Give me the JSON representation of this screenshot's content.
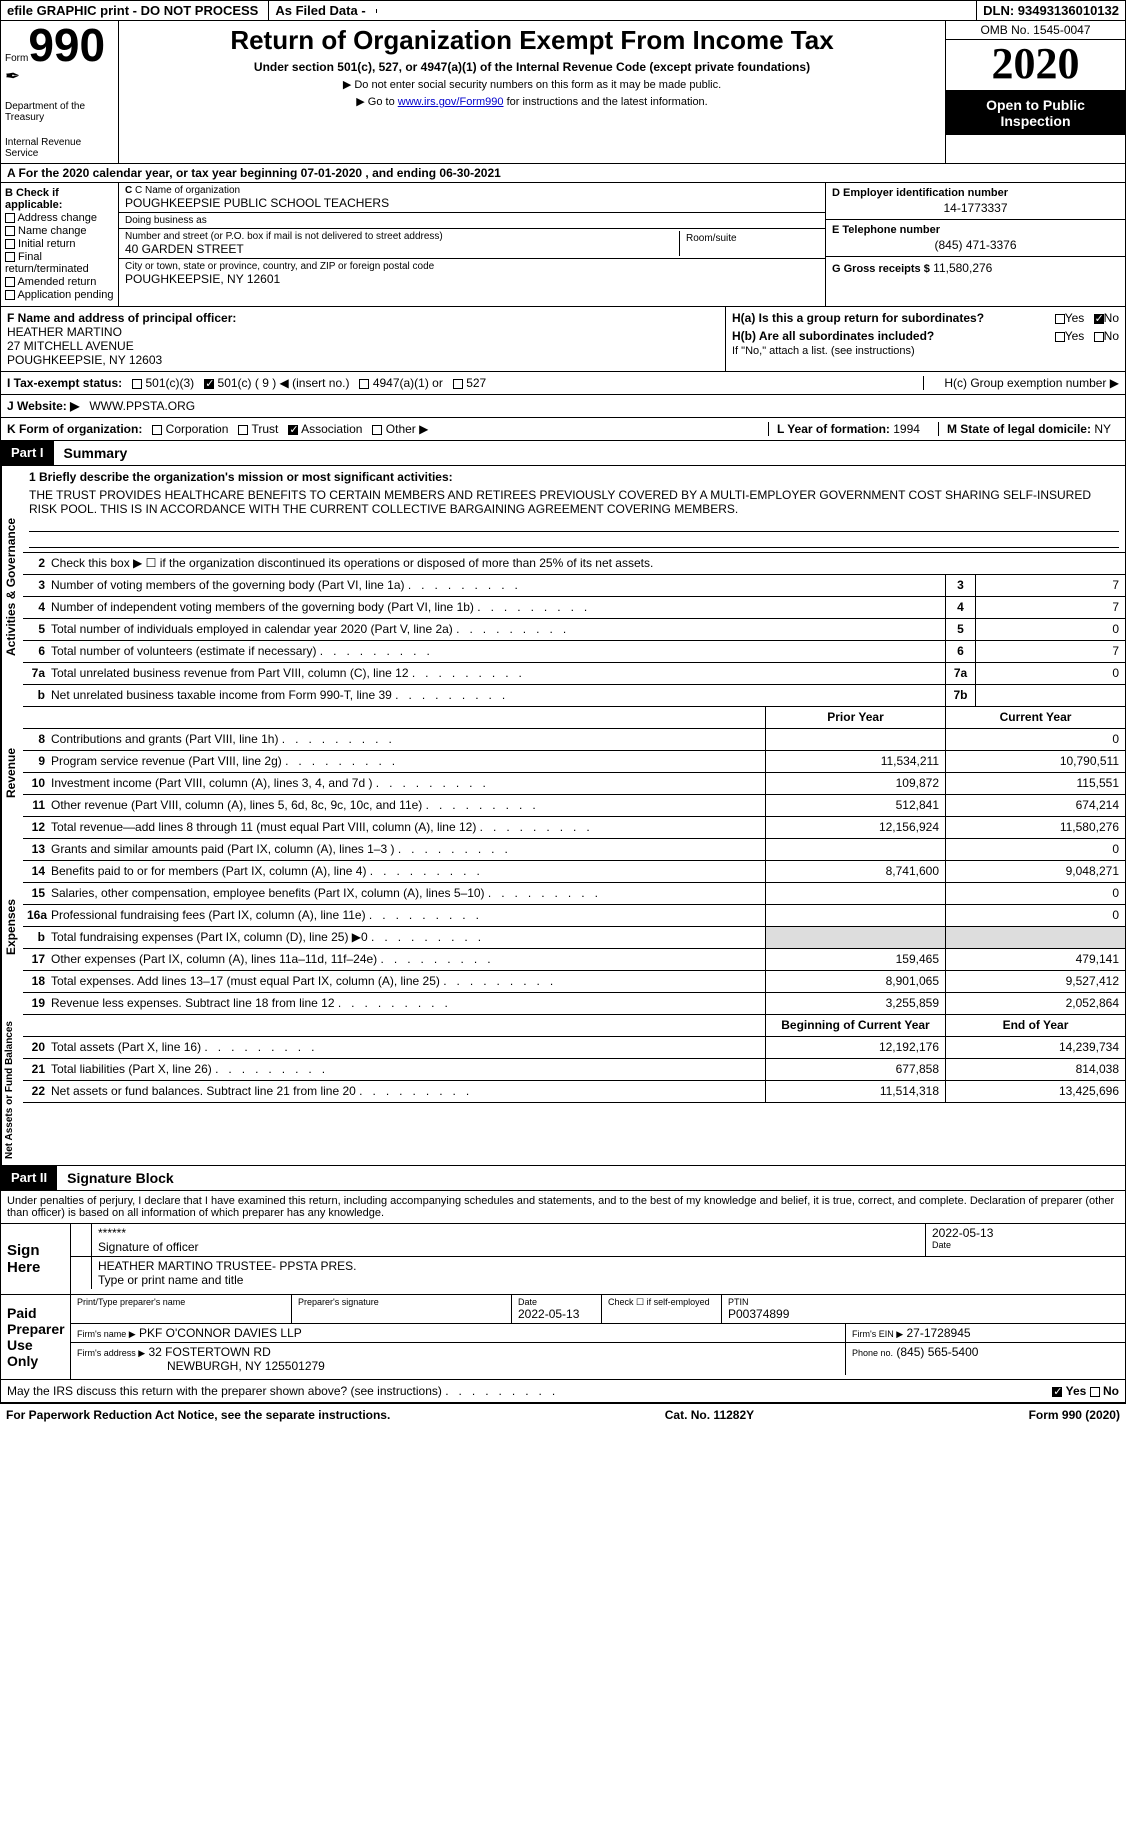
{
  "header_bar": {
    "efile": "efile GRAPHIC print - DO NOT PROCESS",
    "asfileddata": "As Filed Data -",
    "dln": "DLN: 93493136010132"
  },
  "top": {
    "form_label": "Form",
    "form_num": "990",
    "dept1": "Department of the Treasury",
    "dept2": "Internal Revenue Service",
    "title": "Return of Organization Exempt From Income Tax",
    "sub": "Under section 501(c), 527, or 4947(a)(1) of the Internal Revenue Code (except private foundations)",
    "note": "▶ Do not enter social security numbers on this form as it may be made public.",
    "goto_pre": "▶ Go to ",
    "goto_link": "www.irs.gov/Form990",
    "goto_post": " for instructions and the latest information.",
    "omb": "OMB No. 1545-0047",
    "year": "2020",
    "open_pub": "Open to Public Inspection"
  },
  "rowA": {
    "pre": "A  For the 2020 calendar year, or tax year beginning ",
    "begin": "07-01-2020",
    "mid": " , and ending ",
    "end": "06-30-2021"
  },
  "colB": {
    "hdr": "B Check if applicable:",
    "items": [
      "Address change",
      "Name change",
      "Initial return",
      "Final return/terminated",
      "Amended return",
      "Application pending"
    ]
  },
  "colC": {
    "name_lbl": "C Name of organization",
    "name": "POUGHKEEPSIE PUBLIC SCHOOL TEACHERS",
    "dba_lbl": "Doing business as",
    "dba": "",
    "addr_lbl": "Number and street (or P.O. box if mail is not delivered to street address)",
    "addr": "40 GARDEN STREET",
    "room_lbl": "Room/suite",
    "city_lbl": "City or town, state or province, country, and ZIP or foreign postal code",
    "city": "POUGHKEEPSIE, NY  12601"
  },
  "colD": {
    "ein_lbl": "D Employer identification number",
    "ein": "14-1773337",
    "tel_lbl": "E Telephone number",
    "tel": "(845) 471-3376",
    "gross_lbl": "G Gross receipts $",
    "gross": "11,580,276"
  },
  "blockF": {
    "lbl": "F  Name and address of principal officer:",
    "name": "HEATHER MARTINO",
    "addr1": "27 MITCHELL AVENUE",
    "addr2": "POUGHKEEPSIE, NY  12603"
  },
  "blockH": {
    "ha": "H(a)  Is this a group return for subordinates?",
    "hb": "H(b)  Are all subordinates included?",
    "hb_note": "If \"No,\" attach a list. (see instructions)",
    "hc": "H(c)  Group exemption number ▶"
  },
  "rowI": {
    "lbl": "I  Tax-exempt status:",
    "opts": [
      "501(c)(3)",
      "501(c) ( 9 ) ◀ (insert no.)",
      "4947(a)(1) or",
      "527"
    ]
  },
  "rowJ": {
    "lbl": "J  Website: ▶",
    "val": "WWW.PPSTA.ORG"
  },
  "rowK": {
    "lbl": "K Form of organization:",
    "opts": [
      "Corporation",
      "Trust",
      "Association",
      "Other ▶"
    ],
    "l_lbl": "L Year of formation:",
    "l_val": "1994",
    "m_lbl": "M State of legal domicile:",
    "m_val": "NY"
  },
  "partI": {
    "tag": "Part I",
    "title": "Summary"
  },
  "summary": {
    "side1": "Activities & Governance",
    "side2": "Revenue",
    "side3": "Expenses",
    "side4": "Net Assets or Fund Balances",
    "mission_lbl": "1 Briefly describe the organization's mission or most significant activities:",
    "mission": "THE TRUST PROVIDES HEALTHCARE BENEFITS TO CERTAIN MEMBERS AND RETIREES PREVIOUSLY COVERED BY A MULTI-EMPLOYER GOVERNMENT COST SHARING SELF-INSURED RISK POOL. THIS IS IN ACCORDANCE WITH THE CURRENT COLLECTIVE BARGAINING AGREEMENT COVERING MEMBERS.",
    "line2": "Check this box ▶ ☐ if the organization discontinued its operations or disposed of more than 25% of its net assets.",
    "rows_ag": [
      {
        "n": "3",
        "t": "Number of voting members of the governing body (Part VI, line 1a)",
        "box": "3",
        "v": "7"
      },
      {
        "n": "4",
        "t": "Number of independent voting members of the governing body (Part VI, line 1b)",
        "box": "4",
        "v": "7"
      },
      {
        "n": "5",
        "t": "Total number of individuals employed in calendar year 2020 (Part V, line 2a)",
        "box": "5",
        "v": "0"
      },
      {
        "n": "6",
        "t": "Total number of volunteers (estimate if necessary)",
        "box": "6",
        "v": "7"
      },
      {
        "n": "7a",
        "t": "Total unrelated business revenue from Part VIII, column (C), line 12",
        "box": "7a",
        "v": "0"
      },
      {
        "n": "b",
        "t": "Net unrelated business taxable income from Form 990-T, line 39",
        "box": "7b",
        "v": ""
      }
    ],
    "col_hdr_prior": "Prior Year",
    "col_hdr_curr": "Current Year",
    "rows_rev": [
      {
        "n": "8",
        "t": "Contributions and grants (Part VIII, line 1h)",
        "p": "",
        "c": "0"
      },
      {
        "n": "9",
        "t": "Program service revenue (Part VIII, line 2g)",
        "p": "11,534,211",
        "c": "10,790,511"
      },
      {
        "n": "10",
        "t": "Investment income (Part VIII, column (A), lines 3, 4, and 7d )",
        "p": "109,872",
        "c": "115,551"
      },
      {
        "n": "11",
        "t": "Other revenue (Part VIII, column (A), lines 5, 6d, 8c, 9c, 10c, and 11e)",
        "p": "512,841",
        "c": "674,214"
      },
      {
        "n": "12",
        "t": "Total revenue—add lines 8 through 11 (must equal Part VIII, column (A), line 12)",
        "p": "12,156,924",
        "c": "11,580,276"
      }
    ],
    "rows_exp": [
      {
        "n": "13",
        "t": "Grants and similar amounts paid (Part IX, column (A), lines 1–3 )",
        "p": "",
        "c": "0"
      },
      {
        "n": "14",
        "t": "Benefits paid to or for members (Part IX, column (A), line 4)",
        "p": "8,741,600",
        "c": "9,048,271"
      },
      {
        "n": "15",
        "t": "Salaries, other compensation, employee benefits (Part IX, column (A), lines 5–10)",
        "p": "",
        "c": "0"
      },
      {
        "n": "16a",
        "t": "Professional fundraising fees (Part IX, column (A), line 11e)",
        "p": "",
        "c": "0"
      },
      {
        "n": "b",
        "t": "Total fundraising expenses (Part IX, column (D), line 25) ▶0",
        "p": "__SHADE__",
        "c": "__SHADE__"
      },
      {
        "n": "17",
        "t": "Other expenses (Part IX, column (A), lines 11a–11d, 11f–24e)",
        "p": "159,465",
        "c": "479,141"
      },
      {
        "n": "18",
        "t": "Total expenses. Add lines 13–17 (must equal Part IX, column (A), line 25)",
        "p": "8,901,065",
        "c": "9,527,412"
      },
      {
        "n": "19",
        "t": "Revenue less expenses. Subtract line 18 from line 12",
        "p": "3,255,859",
        "c": "2,052,864"
      }
    ],
    "col_hdr_boy": "Beginning of Current Year",
    "col_hdr_eoy": "End of Year",
    "rows_na": [
      {
        "n": "20",
        "t": "Total assets (Part X, line 16)",
        "p": "12,192,176",
        "c": "14,239,734"
      },
      {
        "n": "21",
        "t": "Total liabilities (Part X, line 26)",
        "p": "677,858",
        "c": "814,038"
      },
      {
        "n": "22",
        "t": "Net assets or fund balances. Subtract line 21 from line 20",
        "p": "11,514,318",
        "c": "13,425,696"
      }
    ]
  },
  "partII": {
    "tag": "Part II",
    "title": "Signature Block"
  },
  "sig": {
    "decl": "Under penalties of perjury, I declare that I have examined this return, including accompanying schedules and statements, and to the best of my knowledge and belief, it is true, correct, and complete. Declaration of preparer (other than officer) is based on all information of which preparer has any knowledge.",
    "sign_here": "Sign Here",
    "stars": "******",
    "sig_off": "Signature of officer",
    "date": "2022-05-13",
    "name_title": "HEATHER MARTINO TRUSTEE- PPSTA PRES.",
    "name_title_lbl": "Type or print name and title",
    "paid": "Paid Preparer Use Only",
    "prep_name_lbl": "Print/Type preparer's name",
    "prep_sig_lbl": "Preparer's signature",
    "prep_date_lbl": "Date",
    "prep_date": "2022-05-13",
    "check_self": "Check ☐ if self-employed",
    "ptin_lbl": "PTIN",
    "ptin": "P00374899",
    "firm_name_lbl": "Firm's name   ▶",
    "firm_name": "PKF O'CONNOR DAVIES LLP",
    "firm_ein_lbl": "Firm's EIN ▶",
    "firm_ein": "27-1728945",
    "firm_addr_lbl": "Firm's address ▶",
    "firm_addr": "32 FOSTERTOWN RD",
    "firm_city": "NEWBURGH, NY  125501279",
    "phone_lbl": "Phone no.",
    "phone": "(845) 565-5400",
    "may_irs": "May the IRS discuss this return with the preparer shown above? (see instructions)"
  },
  "footer": {
    "left": "For Paperwork Reduction Act Notice, see the separate instructions.",
    "mid": "Cat. No. 11282Y",
    "right": "Form 990 (2020)"
  }
}
